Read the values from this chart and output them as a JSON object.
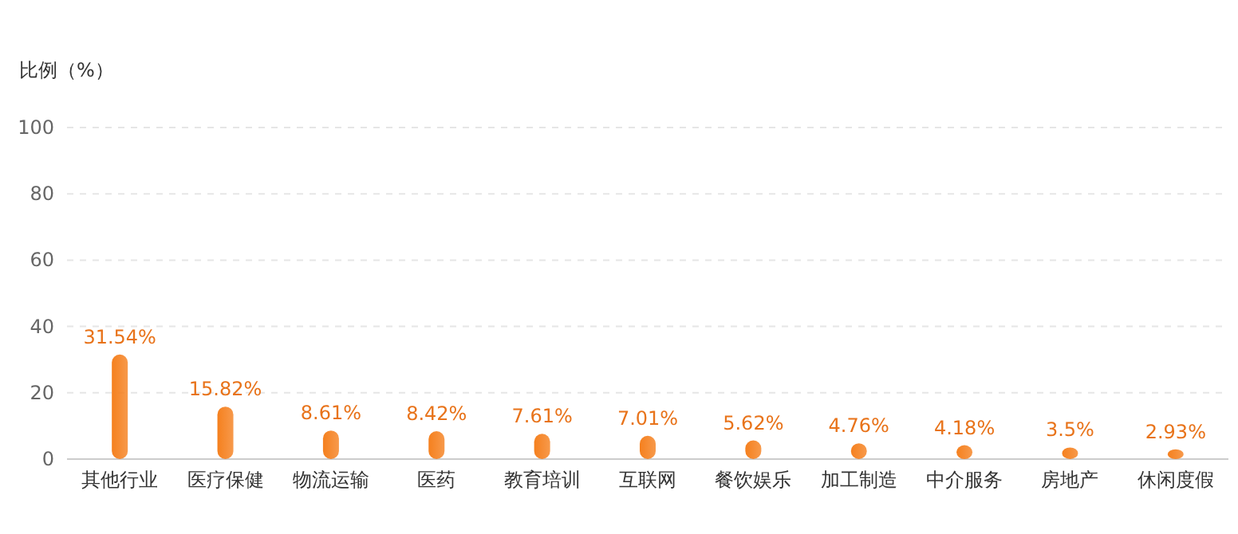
{
  "chart_data": {
    "type": "bar",
    "ylabel": "比例（%）",
    "categories": [
      "其他行业",
      "医疗保健",
      "物流运输",
      "医药",
      "教育培训",
      "互联网",
      "餐饮娱乐",
      "加工制造",
      "中介服务",
      "房地产",
      "休闲度假"
    ],
    "values": [
      31.54,
      15.82,
      8.61,
      8.42,
      7.61,
      7.01,
      5.62,
      4.76,
      4.18,
      3.5,
      2.93
    ],
    "value_labels": [
      "31.54%",
      "15.82%",
      "8.61%",
      "8.42%",
      "7.61%",
      "7.01%",
      "5.62%",
      "4.76%",
      "4.18%",
      "3.5%",
      "2.93%"
    ],
    "color": "#f5801e",
    "ylim": [
      0,
      100
    ],
    "yticks": [
      0,
      20,
      40,
      60,
      80,
      100
    ],
    "grid": "y"
  }
}
